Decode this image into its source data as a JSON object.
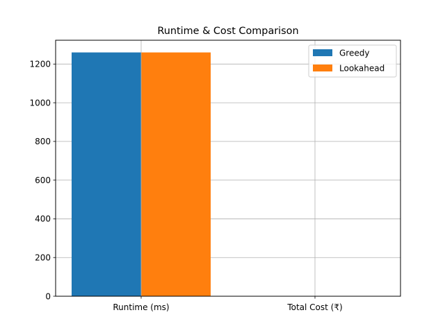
{
  "chart_data": {
    "type": "bar",
    "title": "Runtime & Cost Comparison",
    "xlabel": "",
    "ylabel": "",
    "categories": [
      "Runtime (ms)",
      "Total Cost (₹)"
    ],
    "series": [
      {
        "name": "Greedy",
        "values": [
          1260,
          0
        ],
        "color": "#1f77b4"
      },
      {
        "name": "Lookahead",
        "values": [
          1260,
          0
        ],
        "color": "#ff7f0e"
      }
    ],
    "ylim": [
      0,
      1323
    ],
    "yticks": [
      0,
      200,
      400,
      600,
      800,
      1000,
      1200
    ],
    "grid": true,
    "legend_position": "top-right"
  }
}
